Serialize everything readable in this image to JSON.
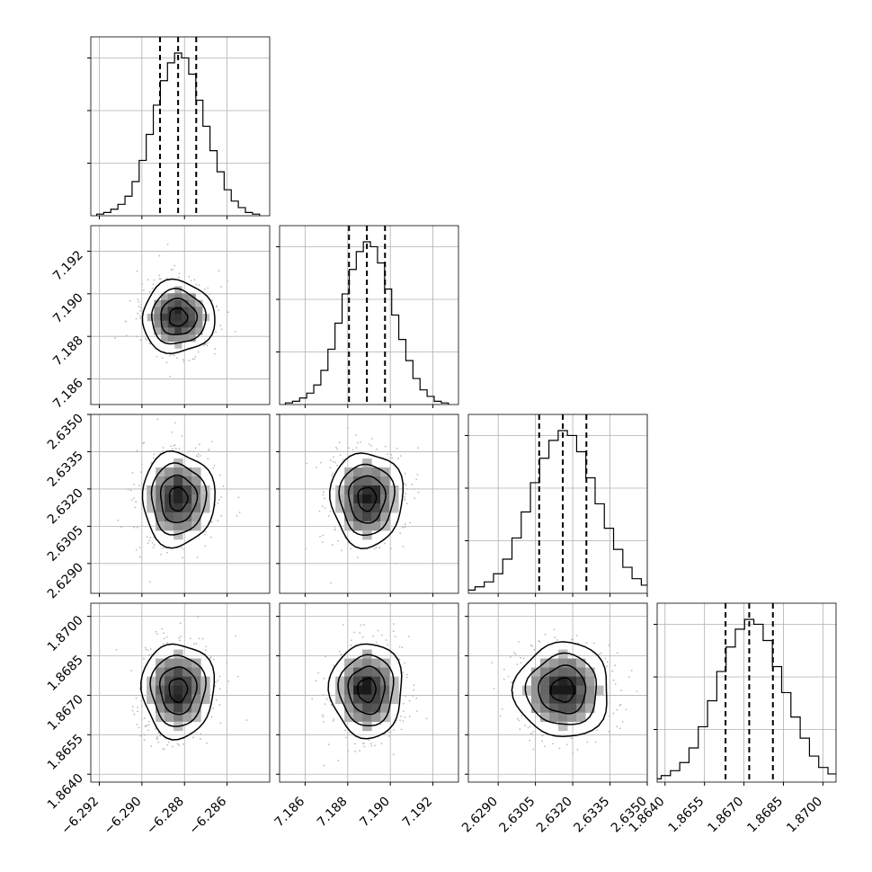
{
  "chart_data": {
    "type": "corner",
    "parameters": [
      {
        "center": -6.2883,
        "sigma": 0.00085,
        "q16": -6.28915,
        "q50": -6.2883,
        "q84": -6.28745,
        "xlim": [
          -6.2924,
          -6.284
        ],
        "ticks": [
          -6.292,
          -6.29,
          -6.288,
          -6.286
        ],
        "tick_labels": [
          "−6.292",
          "−6.290",
          "−6.288",
          "−6.286"
        ],
        "hist": [
          0.01,
          0.02,
          0.04,
          0.07,
          0.12,
          0.21,
          0.34,
          0.5,
          0.68,
          0.83,
          0.94,
          1.0,
          0.97,
          0.87,
          0.71,
          0.55,
          0.4,
          0.27,
          0.16,
          0.09,
          0.05,
          0.02,
          0.01
        ]
      },
      {
        "center": 7.1889,
        "sigma": 0.00085,
        "q16": 7.18806,
        "q50": 7.1889,
        "q84": 7.18975,
        "xlim": [
          7.1848,
          7.1932
        ],
        "ticks": [
          7.186,
          7.188,
          7.19,
          7.192
        ],
        "tick_labels": [
          "7.186",
          "7.188",
          "7.190",
          "7.192"
        ],
        "hist": [
          0.01,
          0.02,
          0.04,
          0.07,
          0.12,
          0.21,
          0.34,
          0.5,
          0.68,
          0.83,
          0.94,
          1.0,
          0.97,
          0.87,
          0.71,
          0.55,
          0.4,
          0.27,
          0.16,
          0.09,
          0.05,
          0.02,
          0.01
        ]
      },
      {
        "center": 2.6316,
        "sigma": 0.00095,
        "q16": 2.63065,
        "q50": 2.6316,
        "q84": 2.63255,
        "xlim": [
          2.6278,
          2.635
        ],
        "ticks": [
          2.629,
          2.6305,
          2.632,
          2.6335,
          2.635
        ],
        "tick_labels": [
          "2.6290",
          "2.6305",
          "2.6320",
          "2.6335",
          "2.6350"
        ],
        "hist": [
          0.01,
          0.02,
          0.04,
          0.07,
          0.12,
          0.21,
          0.34,
          0.5,
          0.68,
          0.83,
          0.94,
          1.0,
          0.97,
          0.87,
          0.71,
          0.55,
          0.4,
          0.27,
          0.16,
          0.09,
          0.05,
          0.02,
          0.01
        ]
      },
      {
        "center": 1.8672,
        "sigma": 0.0009,
        "q16": 1.8663,
        "q50": 1.8672,
        "q84": 1.8681,
        "xlim": [
          1.8637,
          1.8705
        ],
        "ticks": [
          1.864,
          1.8655,
          1.867,
          1.8685,
          1.87
        ],
        "tick_labels": [
          "1.8640",
          "1.8655",
          "1.8670",
          "1.8685",
          "1.8700"
        ],
        "hist": [
          0.01,
          0.02,
          0.04,
          0.07,
          0.12,
          0.21,
          0.34,
          0.5,
          0.68,
          0.83,
          0.94,
          1.0,
          0.97,
          0.87,
          0.71,
          0.55,
          0.4,
          0.27,
          0.16,
          0.09,
          0.05,
          0.02,
          0.01
        ]
      }
    ],
    "grid": true,
    "quantiles": [
      0.16,
      0.5,
      0.84
    ],
    "contour_levels": [
      "0.5-sigma",
      "1-sigma",
      "1.5-sigma",
      "2-sigma"
    ],
    "colors": {
      "line": "#000000",
      "points": "#bbbbbb",
      "grid": "#b0b0b0"
    }
  }
}
